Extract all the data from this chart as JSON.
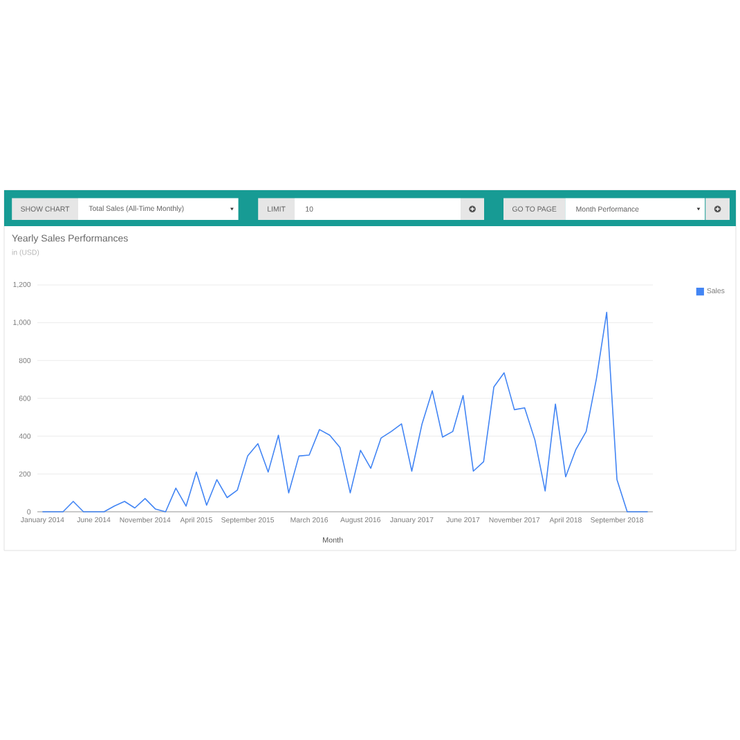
{
  "chart_data": {
    "type": "line",
    "title": "Yearly Sales Performances",
    "subtitle": "in (USD)",
    "xlabel": "Month",
    "categories": [
      "January 2014",
      null,
      null,
      null,
      null,
      "June 2014",
      null,
      null,
      null,
      null,
      "November 2014",
      null,
      null,
      null,
      null,
      "April 2015",
      null,
      null,
      null,
      null,
      "September 2015",
      null,
      null,
      null,
      null,
      null,
      "March 2016",
      null,
      null,
      null,
      null,
      "August 2016",
      null,
      null,
      null,
      null,
      "January 2017",
      null,
      null,
      null,
      null,
      "June 2017",
      null,
      null,
      null,
      null,
      "November 2017",
      null,
      null,
      null,
      null,
      "April 2018",
      null,
      null,
      null,
      null,
      "September 2018",
      null,
      null,
      null
    ],
    "series": [
      {
        "name": "Sales",
        "color": "#4285f4",
        "values": [
          0,
          0,
          0,
          55,
          0,
          0,
          0,
          30,
          55,
          20,
          70,
          15,
          0,
          125,
          30,
          210,
          35,
          170,
          75,
          115,
          295,
          360,
          210,
          405,
          100,
          295,
          300,
          435,
          405,
          340,
          100,
          325,
          230,
          390,
          425,
          465,
          215,
          465,
          640,
          395,
          425,
          615,
          215,
          265,
          660,
          735,
          540,
          550,
          380,
          110,
          570,
          185,
          330,
          425,
          705,
          1055,
          170,
          0,
          0,
          0
        ]
      }
    ],
    "ylim": [
      0,
      1200
    ],
    "yticks": [
      0,
      200,
      400,
      600,
      800,
      {
        "value": 1000,
        "label": "1,000"
      },
      {
        "value": 1200,
        "label": "1,200"
      }
    ],
    "grid": "y",
    "legend": "top right",
    "annotations": [
      "SHOW CHART",
      "Total Sales (All-Time Monthly)",
      "LIMIT",
      "10",
      "GO TO PAGE",
      "Month Performance"
    ]
  }
}
